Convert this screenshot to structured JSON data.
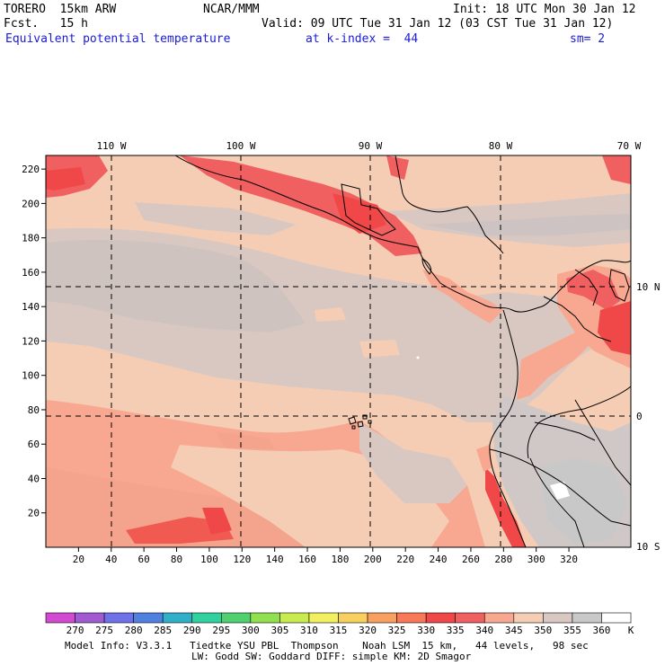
{
  "header": {
    "model": "TORERO  15km ARW",
    "org": "NCAR/MMM",
    "init": "Init: 18 UTC Mon 30 Jan 12",
    "fcst": "Fcst.   15 h",
    "valid": "Valid: 09 UTC Tue 31 Jan 12 (03 CST Tue 31 Jan 12)",
    "field": "Equivalent potential temperature",
    "level": "at k-index =  44",
    "smooth": "sm= 2"
  },
  "map": {
    "lon_labels": [
      "110 W",
      "100 W",
      "90 W",
      "80 W",
      "70 W"
    ],
    "lat_labels": [
      "10 N",
      "0",
      "10 S"
    ],
    "x_ticks": [
      "20",
      "40",
      "60",
      "80",
      "100",
      "120",
      "140",
      "160",
      "180",
      "200",
      "220",
      "240",
      "260",
      "280",
      "300",
      "320"
    ],
    "y_ticks": [
      "220",
      "200",
      "180",
      "160",
      "140",
      "120",
      "100",
      "80",
      "60",
      "40",
      "20"
    ]
  },
  "colorbar": {
    "labels": [
      "270",
      "275",
      "280",
      "285",
      "290",
      "295",
      "300",
      "305",
      "310",
      "315",
      "320",
      "325",
      "330",
      "335",
      "340",
      "345",
      "350",
      "355",
      "360"
    ],
    "unit": "K",
    "colors": [
      "#d24ad2",
      "#a05ad2",
      "#7070e8",
      "#5080e0",
      "#30b0c8",
      "#30d0a0",
      "#50d070",
      "#90e050",
      "#c8ec50",
      "#f0f060",
      "#f8d060",
      "#f8a060",
      "#f87858",
      "#f04848",
      "#f06060",
      "#f8a890",
      "#f4cdb4",
      "#d9c8c2",
      "#c8c8c8",
      "#ffffff"
    ]
  },
  "footer": {
    "line1": "Model Info: V3.3.1   Tiedtke YSU PBL  Thompson    Noah LSM  15 km,   44 levels,   98 sec",
    "line2": "LW: Godd SW: Goddard DIFF: simple KM: 2D Smagor"
  }
}
